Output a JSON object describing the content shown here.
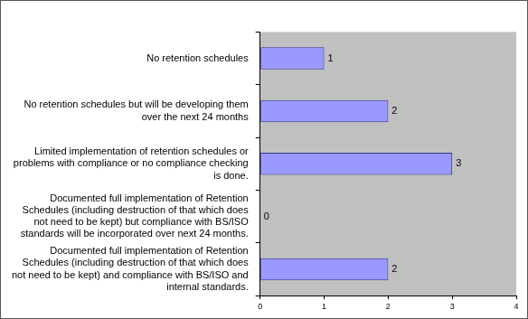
{
  "chart_data": {
    "type": "bar",
    "orientation": "horizontal",
    "categories": [
      "No retention schedules",
      "No retention schedules but will be developing them over the next 24 months",
      "Limited implementation of retention schedules or problems with compliance or no compliance checking is done.",
      "Documented full implementation of Retention Schedules (including destruction of that which does not need to be kept) but compliance with BS/ISO standards will be incorporated over next 24 months.",
      "Documented full implementation of Retention Schedules (including destruction of that which does not need to be kept) and compliance with BS/ISO and internal standards."
    ],
    "values": [
      1,
      2,
      3,
      0,
      2
    ],
    "color": "#9999ff",
    "xlim": [
      0,
      4
    ],
    "xticks": [
      0,
      1,
      2,
      3,
      4
    ],
    "grid": false,
    "data_labels": true
  }
}
